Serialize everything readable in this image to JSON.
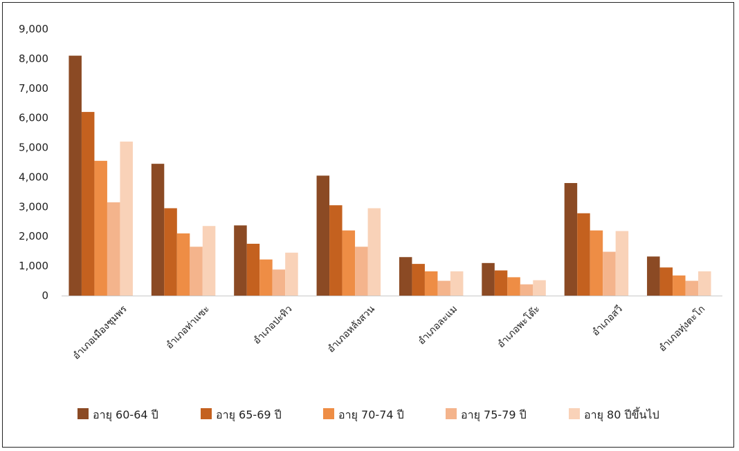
{
  "chart_data": {
    "type": "bar",
    "title": "",
    "xlabel": "",
    "ylabel": "",
    "ylim": [
      0,
      9000
    ],
    "yticks": [
      0,
      1000,
      2000,
      3000,
      4000,
      5000,
      6000,
      7000,
      8000,
      9000
    ],
    "ytick_labels": [
      "0",
      "1,000",
      "2,000",
      "3,000",
      "4,000",
      "5,000",
      "6,000",
      "7,000",
      "8,000",
      "9,000"
    ],
    "grid": false,
    "legend_position": "bottom",
    "categories": [
      "อำเภอเมืองชุมพร",
      "อำเภอท่าแซะ",
      "อำเภอปะทิว",
      "อำเภอหลังสวน",
      "อำเภอละแม",
      "อำเภอพะโต๊ะ",
      "อำเภอสวี",
      "อำเภอทุ่งตะโก"
    ],
    "series": [
      {
        "name": "อายุ 60-64 ปี",
        "color": "#8B4A24",
        "values": [
          8100,
          4450,
          2370,
          4050,
          1300,
          1100,
          3800,
          1320
        ]
      },
      {
        "name": "อายุ 65-69 ปี",
        "color": "#C4611F",
        "values": [
          6200,
          2950,
          1750,
          3050,
          1070,
          850,
          2780,
          950
        ]
      },
      {
        "name": "อายุ 70-74 ปี",
        "color": "#EE8D45",
        "values": [
          4550,
          2100,
          1220,
          2200,
          820,
          620,
          2200,
          680
        ]
      },
      {
        "name": "อายุ 75-79 ปี",
        "color": "#F4B48C",
        "values": [
          3150,
          1650,
          880,
          1650,
          500,
          380,
          1480,
          500
        ]
      },
      {
        "name": "อายุ 80 ปีขึ้นไป",
        "color": "#F9D2B8",
        "values": [
          5200,
          2350,
          1450,
          2950,
          820,
          520,
          2180,
          820
        ]
      }
    ]
  }
}
